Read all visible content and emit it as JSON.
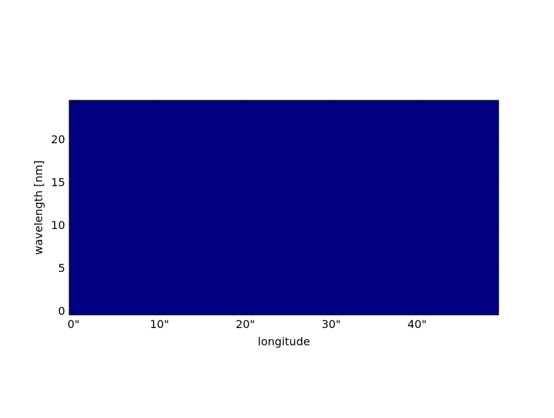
{
  "chart_data": {
    "type": "heatmap",
    "title": "",
    "xlabel": "longitude",
    "ylabel": "wavelength [nm]",
    "xlim": [
      -0.5,
      49.5
    ],
    "ylim": [
      -0.5,
      24.5
    ],
    "x_ticks": [
      0,
      10,
      20,
      30,
      40
    ],
    "x_tick_labels": [
      "0\"",
      "10\"",
      "20\"",
      "30\"",
      "40\""
    ],
    "y_ticks": [
      0,
      5,
      10,
      15,
      20
    ],
    "y_tick_labels": [
      "0",
      "5",
      "10",
      "15",
      "20"
    ],
    "values": [
      [
        0
      ]
    ],
    "fill_color": "#000080",
    "grid": false
  }
}
